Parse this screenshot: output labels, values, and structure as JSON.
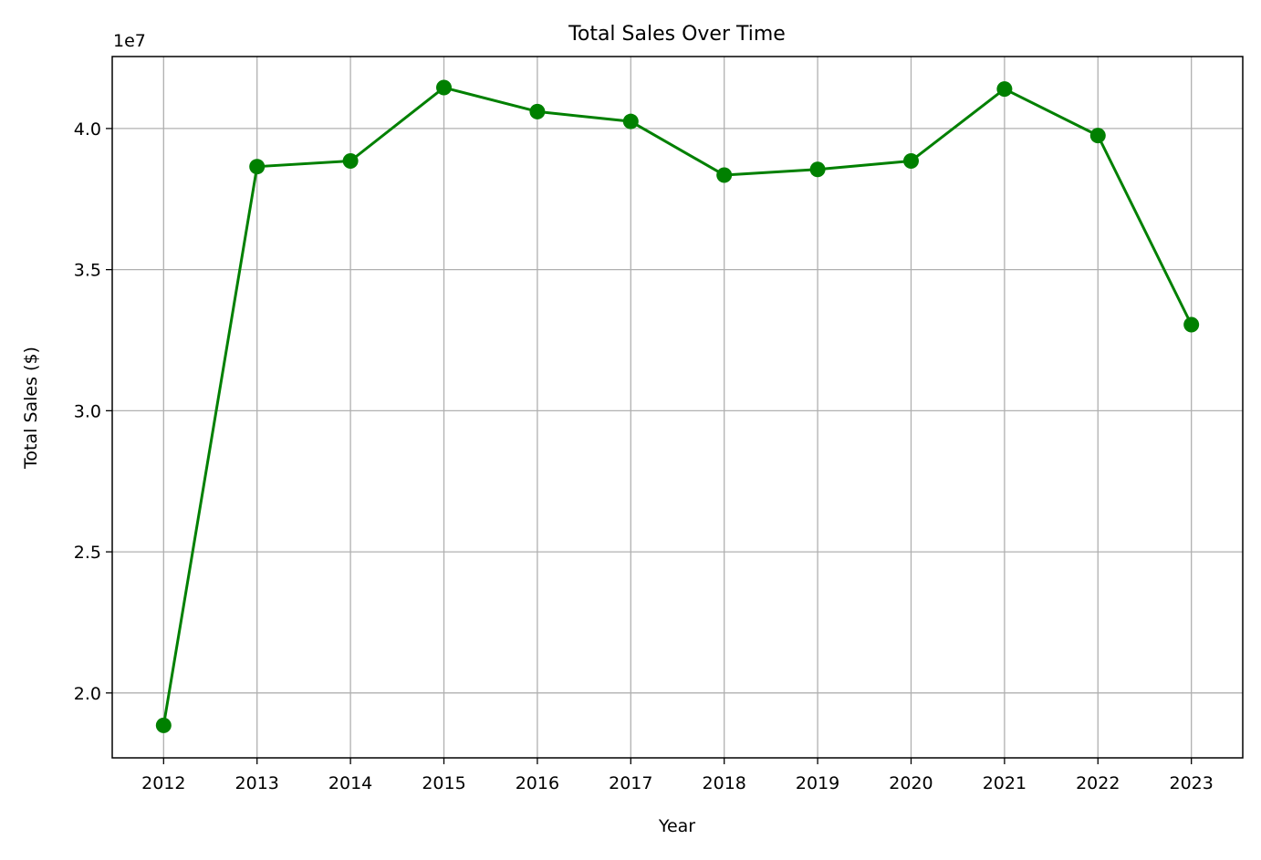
{
  "chart_data": {
    "type": "line",
    "title": "Total Sales Over Time",
    "xlabel": "Year",
    "ylabel": "Total Sales ($)",
    "y_offset_label": "1e7",
    "y_tick_labels": [
      "2.0",
      "2.5",
      "3.0",
      "3.5",
      "4.0"
    ],
    "y_ticks": [
      2.0,
      2.5,
      3.0,
      3.5,
      4.0
    ],
    "categories": [
      "2012",
      "2013",
      "2014",
      "2015",
      "2016",
      "2017",
      "2018",
      "2019",
      "2020",
      "2021",
      "2022",
      "2023"
    ],
    "x": [
      2012,
      2013,
      2014,
      2015,
      2016,
      2017,
      2018,
      2019,
      2020,
      2021,
      2022,
      2023
    ],
    "values": [
      1.885,
      3.865,
      3.885,
      4.145,
      4.06,
      4.025,
      3.835,
      3.855,
      3.885,
      4.14,
      3.975,
      3.305
    ],
    "value_scale": 10000000,
    "xlim": [
      2011.45,
      2023.55
    ],
    "ylim": [
      1.77,
      4.255
    ],
    "grid": true,
    "line_color": "#008000",
    "grid_color": "#b0b0b0"
  }
}
